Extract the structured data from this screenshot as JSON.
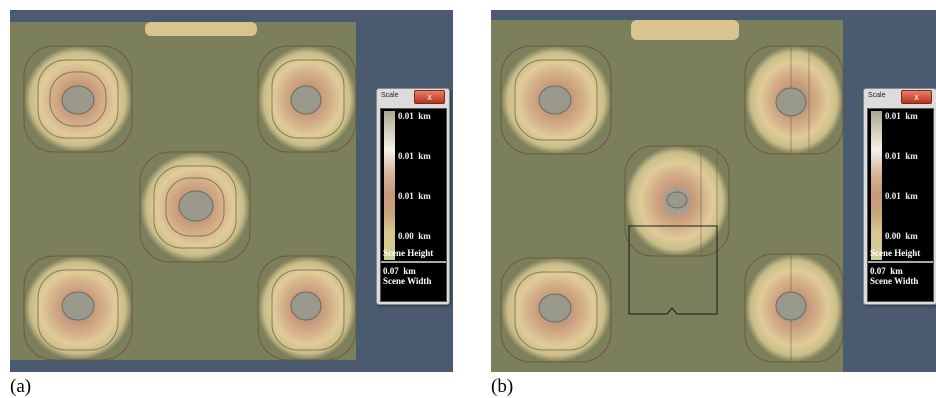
{
  "panels": [
    {
      "caption": "(a)",
      "scale": {
        "title": "Scale",
        "close_label": "x",
        "ticks": [
          {
            "value": "0.01",
            "unit": "km"
          },
          {
            "value": "0.01",
            "unit": "km"
          },
          {
            "value": "0.01",
            "unit": "km"
          },
          {
            "value": "0.00",
            "unit": "km"
          }
        ],
        "height_label": "Scene Height",
        "width_value": "0.07",
        "width_unit": "km",
        "width_label": "Scene Width"
      }
    },
    {
      "caption": "(b)",
      "scale": {
        "title": "Scale",
        "close_label": "x",
        "ticks": [
          {
            "value": "0.01",
            "unit": "km"
          },
          {
            "value": "0.01",
            "unit": "km"
          },
          {
            "value": "0.01",
            "unit": "km"
          },
          {
            "value": "0.00",
            "unit": "km"
          }
        ],
        "height_label": "Scene Height",
        "width_value": "0.07",
        "width_unit": "km",
        "width_label": "Scene Width"
      }
    }
  ],
  "colors": {
    "viewport_background": "#4a5a6f",
    "terrain_base": "#7c7f5c",
    "peak_center": "#9a9a8c",
    "contour_dark": "#5a4a30"
  }
}
